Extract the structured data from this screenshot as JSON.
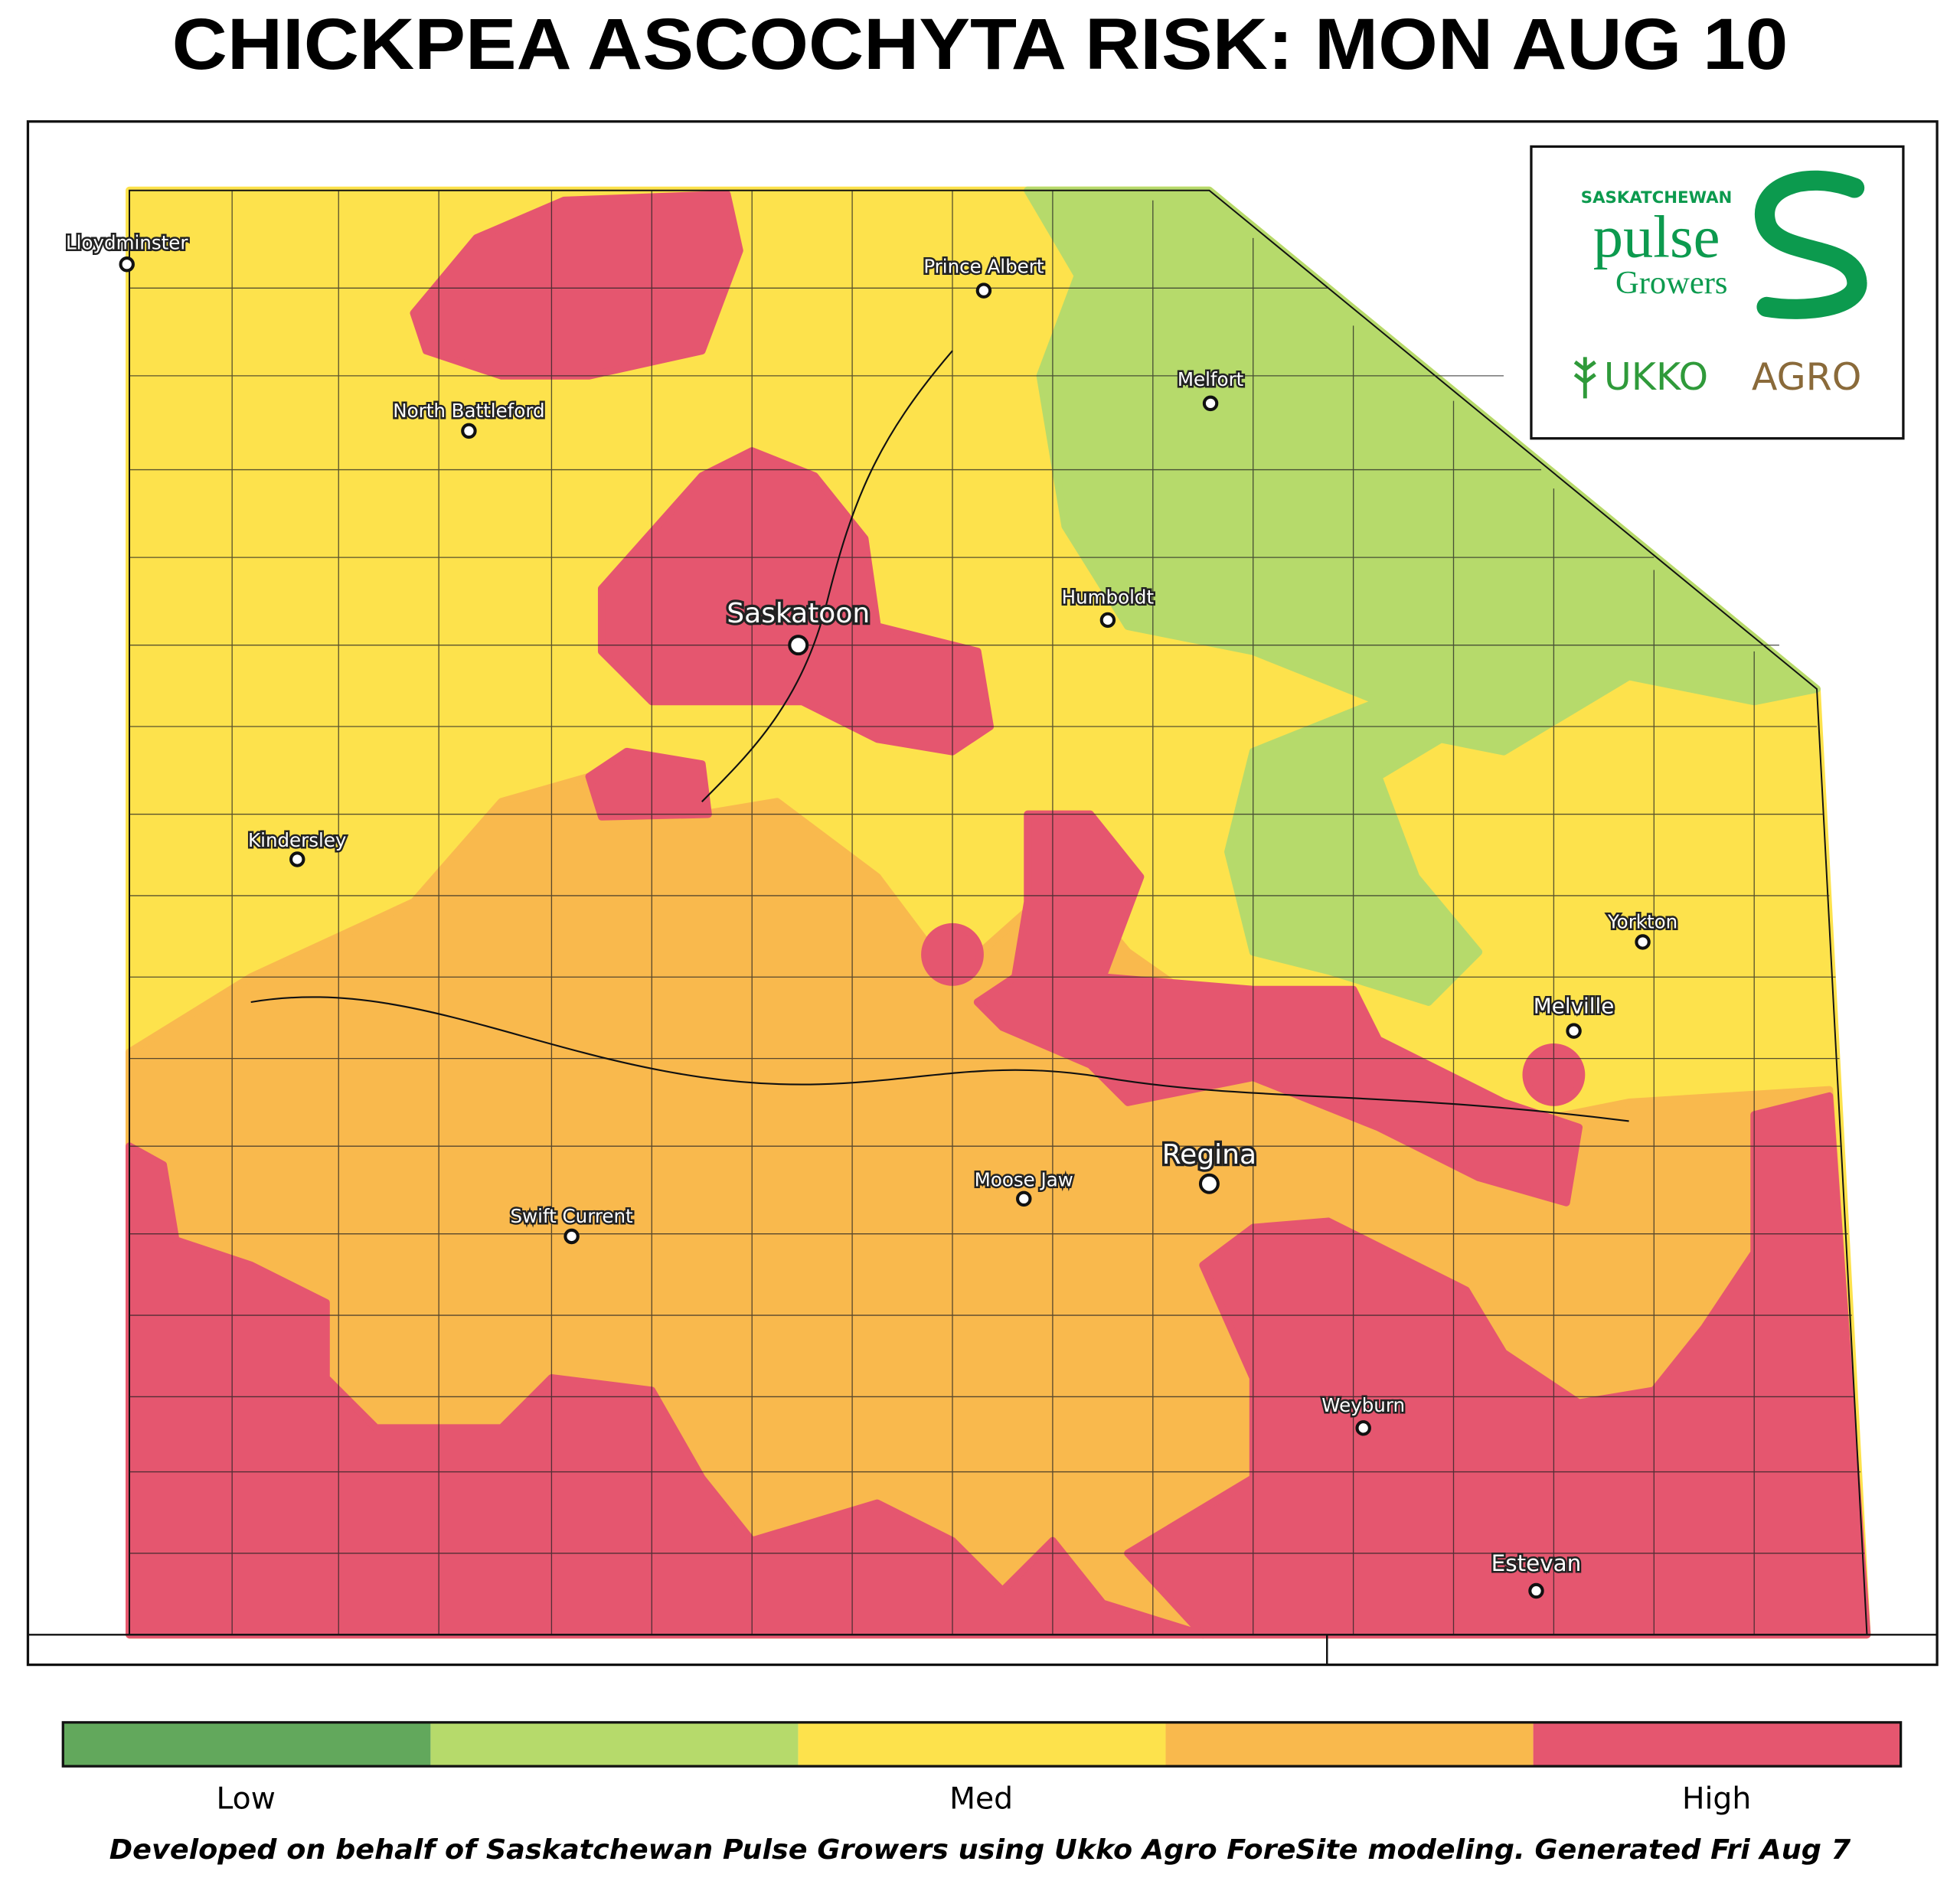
{
  "title": "CHICKPEA ASCOCHYTA RISK: MON AUG 10",
  "logo": {
    "top": "SASKATCHEWAN",
    "main": "pulse",
    "sub": "Growers",
    "brand_a": "UKKO",
    "brand_b": "AGRO"
  },
  "cities": [
    "Lloydminster",
    "Prince Albert",
    "Melfort",
    "North Battleford",
    "Humboldt",
    "Saskatoon",
    "Kindersley",
    "Yorkton",
    "Melville",
    "Regina",
    "Moose Jaw",
    "Swift Current",
    "Weyburn",
    "Estevan"
  ],
  "legend": {
    "colors": [
      "#62a85c",
      "#b6da6b",
      "#fde24c",
      "#f9b94d",
      "#e5566f"
    ],
    "labels": [
      "Low",
      "Med",
      "High"
    ]
  },
  "footer": "Developed on behalf of Saskatchewan Pulse Growers using Ukko Agro ForeSite modeling. Generated Fri Aug 7"
}
